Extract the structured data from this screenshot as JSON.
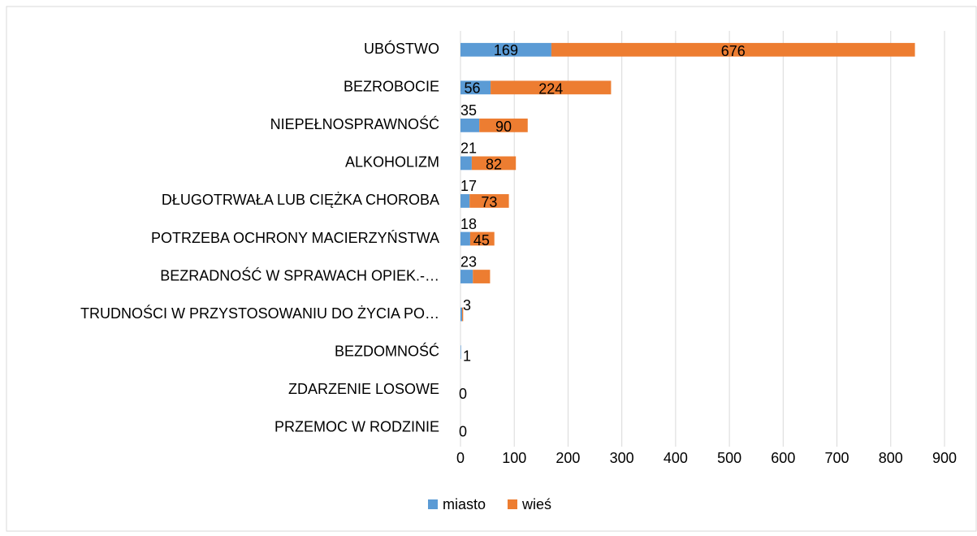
{
  "chart_data": {
    "type": "stacked-bar-horizontal",
    "categories": [
      "UBÓSTWO",
      "BEZROBOCIE",
      "NIEPEŁNOSPRAWNOŚĆ",
      "ALKOHOLIZM",
      "DŁUGOTRWAŁA LUB CIĘŻKA CHOROBA",
      "POTRZEBA OCHRONY MACIERZYŃSTWA",
      "BEZRADNOŚĆ W SPRAWACH OPIEK.-…",
      "TRUDNOŚCI W PRZYSTOSOWANIU DO ŻYCIA PO…",
      "BEZDOMNOŚĆ",
      "ZDARZENIE LOSOWE",
      "PRZEMOC W RODZINIE"
    ],
    "series": [
      {
        "name": "miasto",
        "color": "#5b9bd5",
        "values": [
          169,
          56,
          35,
          21,
          17,
          18,
          23,
          3,
          1,
          0,
          0
        ]
      },
      {
        "name": "wieś",
        "color": "#ed7d31",
        "values": [
          676,
          224,
          90,
          82,
          73,
          45,
          32,
          2,
          0,
          0,
          0
        ],
        "value_labels": [
          "676",
          "224",
          "90",
          "82",
          "73",
          "45",
          null,
          null,
          null,
          null,
          null
        ]
      }
    ],
    "xlim": [
      0,
      900
    ],
    "xticks": [
      0,
      100,
      200,
      300,
      400,
      500,
      600,
      700,
      800,
      900
    ],
    "grid": true,
    "legend": "bottom"
  }
}
